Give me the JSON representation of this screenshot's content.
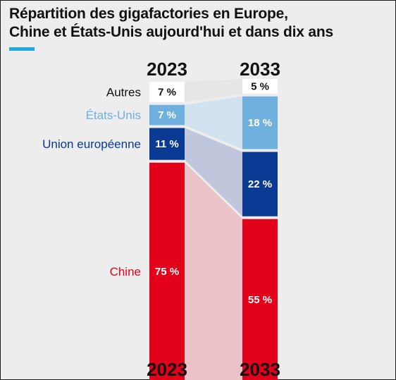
{
  "header": {
    "title_line1": "Répartition des gigafactories en Europe,",
    "title_line2": "Chine et États-Unis aujourd'hui et dans dix ans"
  },
  "chart_data": {
    "type": "bar",
    "stacked": true,
    "normalized_percent": true,
    "categories": [
      "2023",
      "2033"
    ],
    "series": [
      {
        "name": "Chine",
        "values": [
          75,
          55
        ],
        "labels": [
          "75 %",
          "55 %"
        ],
        "color": "#e2001a",
        "band_color": "#ebc2c8",
        "text_color": "#ffffff",
        "label_color": "#e2001a"
      },
      {
        "name": "Union européenne",
        "values": [
          11,
          22
        ],
        "labels": [
          "11 %",
          "22 %"
        ],
        "color": "#0b3a94",
        "band_color": "#c0c7dc",
        "text_color": "#ffffff",
        "label_color": "#0b3a94"
      },
      {
        "name": "États-Unis",
        "values": [
          7,
          18
        ],
        "labels": [
          "7 %",
          "18 %"
        ],
        "color": "#6fb0df",
        "band_color": "#d0e2ee",
        "text_color": "#ffffff",
        "label_color": "#6fb0df"
      },
      {
        "name": "Autres",
        "values": [
          7,
          5
        ],
        "labels": [
          "7 %",
          "5 %"
        ],
        "color": "#ffffff",
        "band_color": "#e6e6e6",
        "text_color": "#111111",
        "label_color": "#111111"
      }
    ],
    "colors": {
      "accent": "#1ea7e1"
    }
  }
}
